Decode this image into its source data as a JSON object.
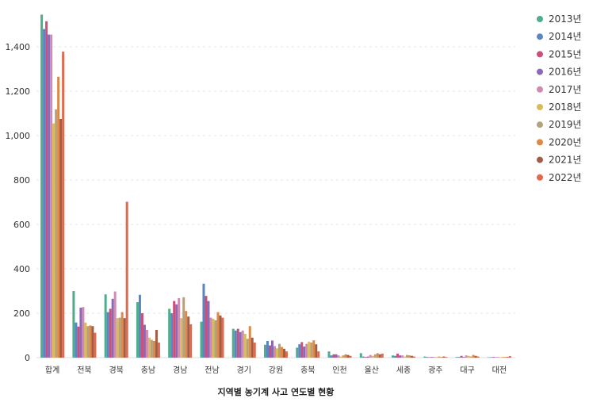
{
  "chart_data": {
    "type": "bar",
    "title": "",
    "xlabel": "지역별 농기계 사고 연도별 현황",
    "ylabel": "",
    "ylim": [
      0,
      1550
    ],
    "yticks": [
      0,
      200,
      400,
      600,
      800,
      1000,
      1200,
      1400
    ],
    "yticks_labels": [
      "0",
      "200",
      "400",
      "600",
      "800",
      "1,000",
      "1,200",
      "1,400"
    ],
    "grid": true,
    "legend": "right",
    "categories": [
      "합계",
      "전북",
      "경북",
      "충남",
      "경남",
      "전남",
      "경기",
      "강원",
      "충북",
      "인천",
      "울산",
      "세종",
      "광주",
      "대구",
      "대전"
    ],
    "series": [
      {
        "name": "2013년",
        "color": "#4fac8e",
        "values": [
          1545,
          300,
          285,
          250,
          220,
          162,
          130,
          58,
          45,
          28,
          20,
          10,
          5,
          3,
          2
        ]
      },
      {
        "name": "2014년",
        "color": "#5a86c1",
        "values": [
          1480,
          158,
          205,
          283,
          200,
          333,
          122,
          75,
          60,
          10,
          5,
          8,
          3,
          3,
          2
        ]
      },
      {
        "name": "2015년",
        "color": "#cc4e7a",
        "values": [
          1515,
          140,
          220,
          200,
          255,
          278,
          130,
          55,
          70,
          15,
          3,
          18,
          2,
          8,
          3
        ]
      },
      {
        "name": "2016년",
        "color": "#8b69b5",
        "values": [
          1455,
          225,
          265,
          148,
          240,
          255,
          115,
          77,
          50,
          15,
          5,
          10,
          3,
          3,
          2
        ]
      },
      {
        "name": "2017년",
        "color": "#d18bb3",
        "values": [
          1455,
          228,
          298,
          125,
          268,
          180,
          122,
          52,
          62,
          10,
          12,
          10,
          3,
          10,
          3
        ]
      },
      {
        "name": "2018년",
        "color": "#d9bb59",
        "values": [
          1055,
          158,
          178,
          90,
          178,
          175,
          107,
          42,
          72,
          5,
          8,
          5,
          3,
          8,
          2
        ]
      },
      {
        "name": "2019년",
        "color": "#b5a27d",
        "values": [
          1118,
          142,
          180,
          80,
          272,
          168,
          85,
          62,
          68,
          10,
          15,
          12,
          5,
          5,
          3
        ]
      },
      {
        "name": "2020년",
        "color": "#de8848",
        "values": [
          1265,
          145,
          205,
          75,
          210,
          205,
          142,
          48,
          78,
          15,
          20,
          10,
          3,
          12,
          3
        ]
      },
      {
        "name": "2021년",
        "color": "#a35d45",
        "values": [
          1075,
          142,
          178,
          125,
          185,
          190,
          90,
          40,
          60,
          12,
          15,
          8,
          5,
          8,
          3
        ]
      },
      {
        "name": "2022년",
        "color": "#e06950",
        "values": [
          1378,
          112,
          702,
          68,
          150,
          180,
          68,
          28,
          28,
          8,
          18,
          5,
          3,
          5,
          7
        ]
      }
    ]
  }
}
